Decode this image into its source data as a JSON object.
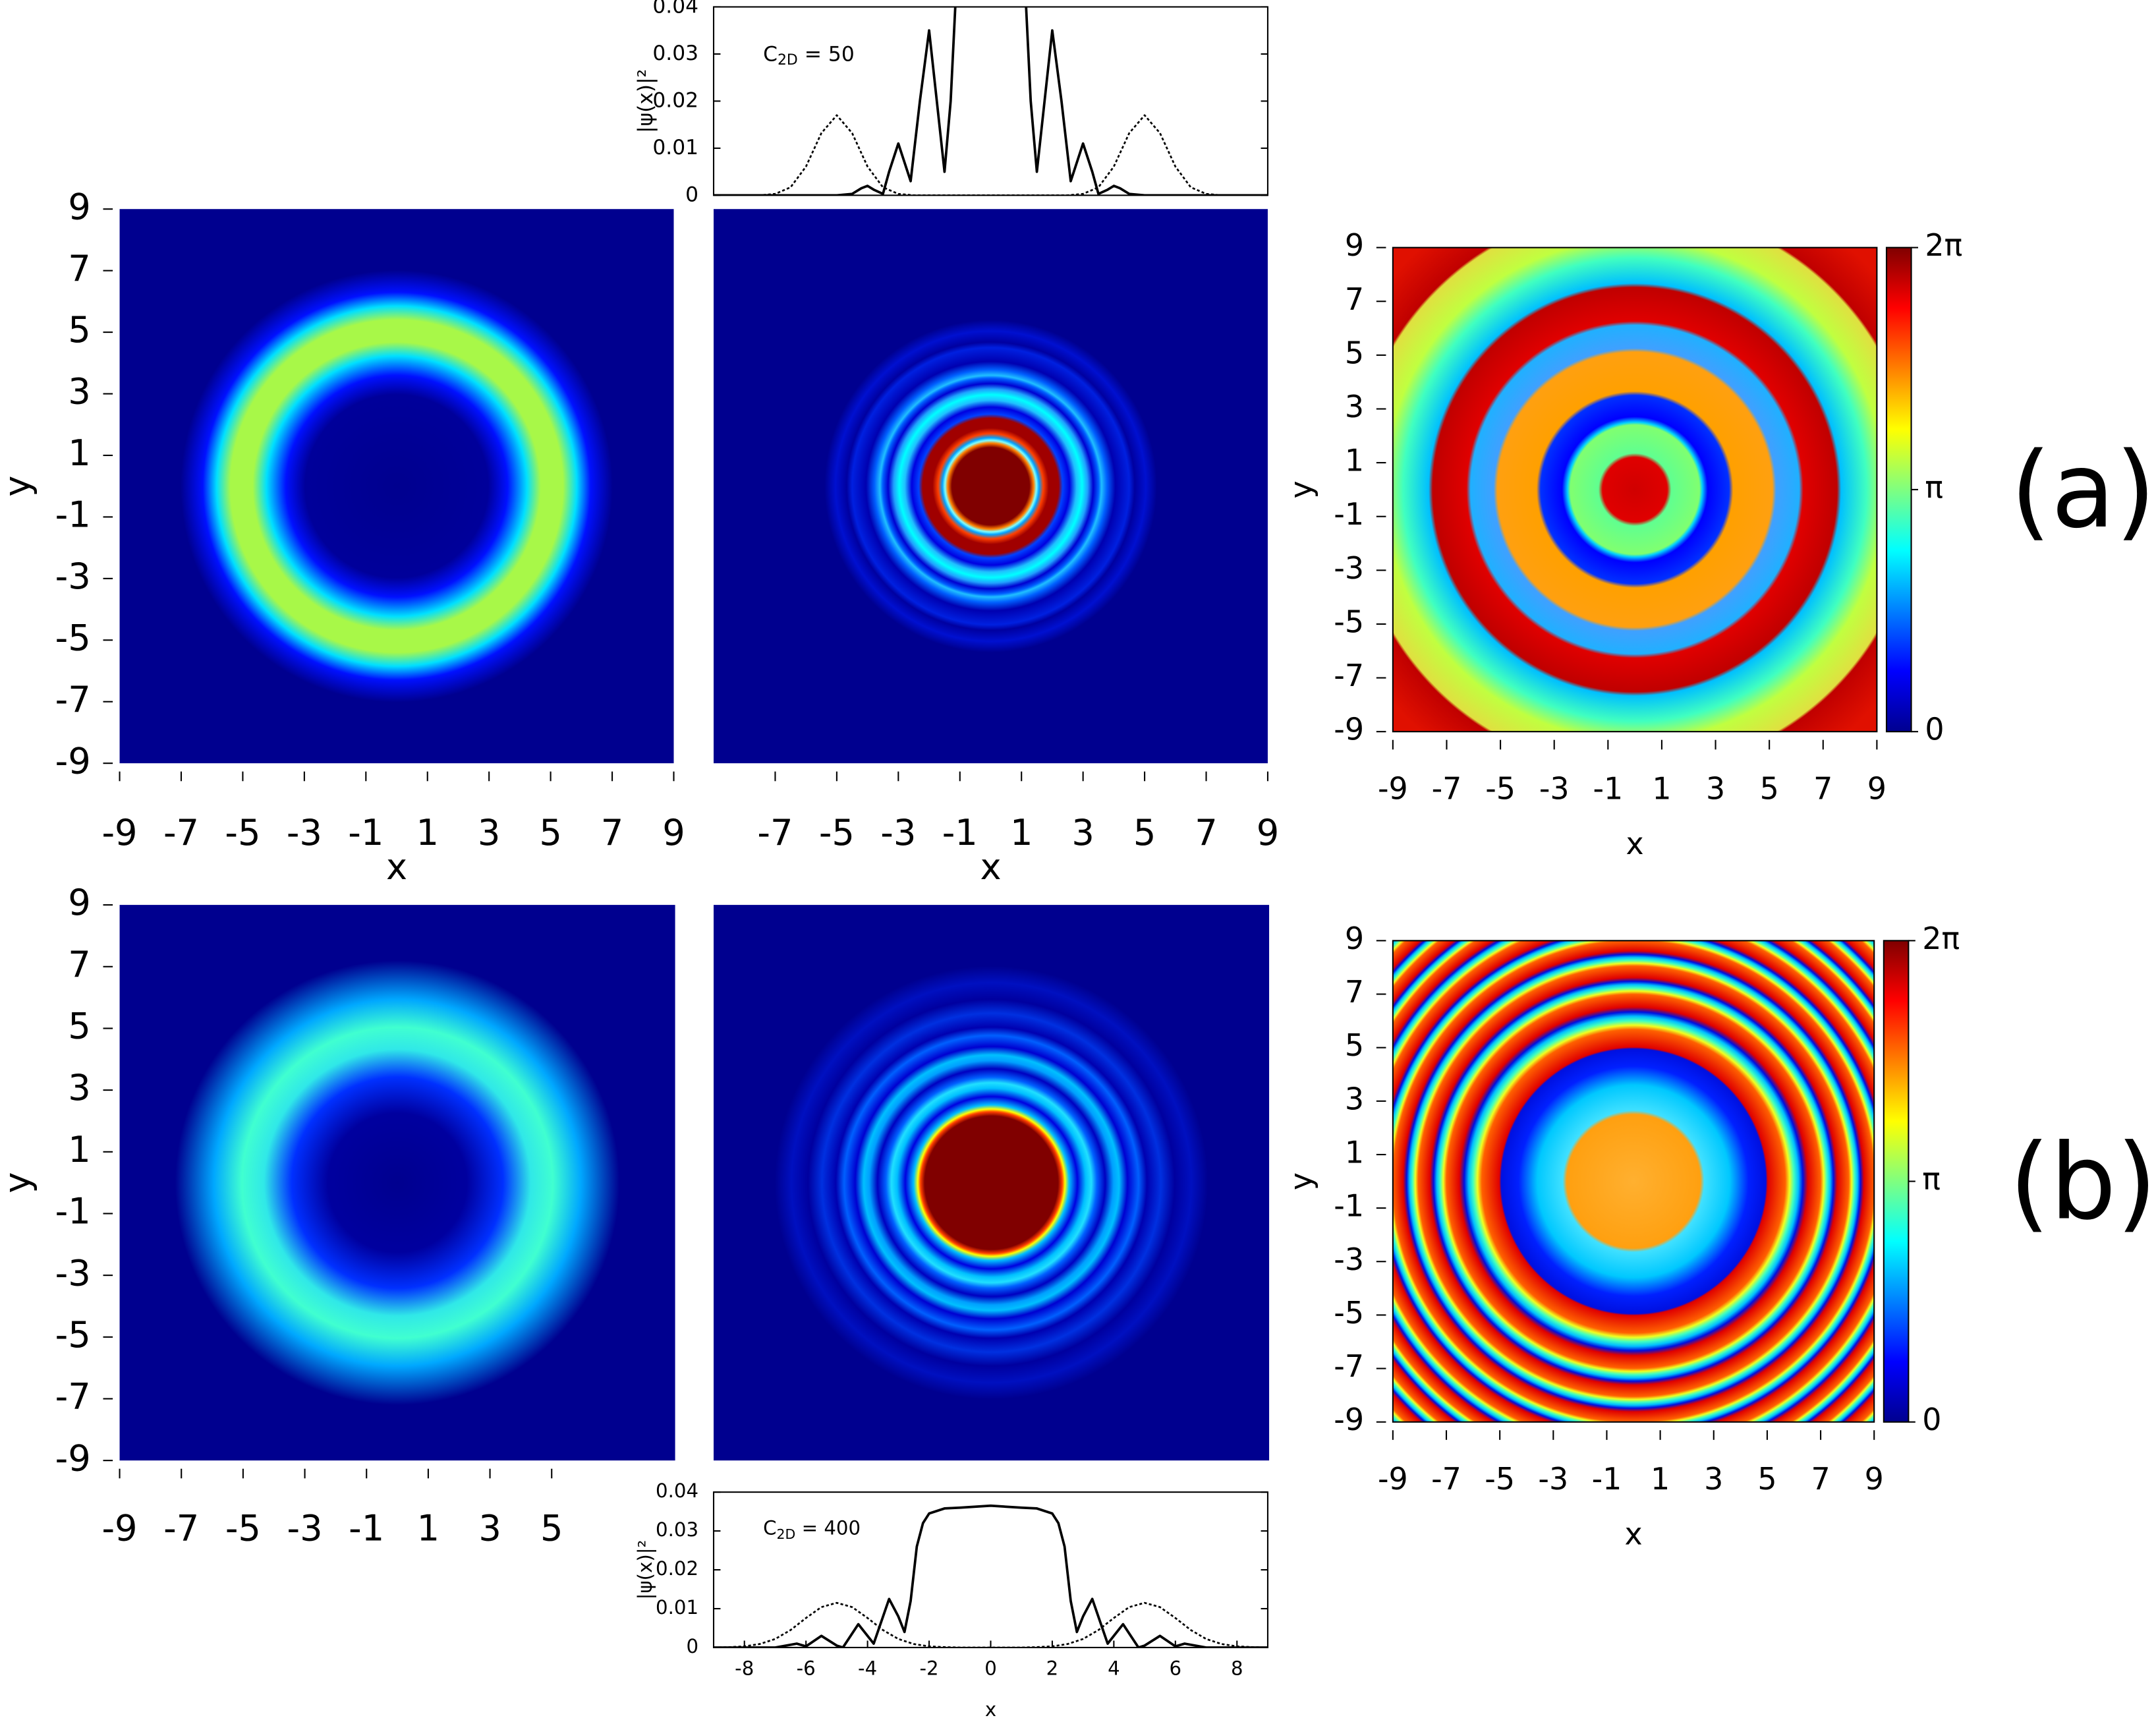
{
  "chart_data": [
    {
      "type": "heatmap",
      "xlabel": "x",
      "ylabel": "y",
      "xlim": [
        -9,
        9
      ],
      "ylim": [
        -9,
        9
      ],
      "xticks": [
        -9,
        -7,
        -5,
        -3,
        -1,
        1,
        3,
        5,
        7,
        9
      ],
      "yticks": [
        -9,
        -7,
        -5,
        -3,
        -1,
        1,
        3,
        5,
        7,
        9
      ]
    },
    {
      "type": "heatmap",
      "xlabel": "x",
      "xlim": [
        -9,
        9
      ],
      "ylim": [
        -9,
        9
      ],
      "xticks": [
        -7,
        -5,
        -3,
        -1,
        1,
        3,
        5,
        7,
        9
      ]
    },
    {
      "type": "line",
      "ylabel": "|ψ(x)|²",
      "annotation": {
        "main": "C",
        "sub": "2D",
        "rest": " = 50"
      },
      "xlim": [
        -9,
        9
      ],
      "ylim": [
        0,
        0.04
      ],
      "yticks": [
        0,
        0.01,
        0.02,
        0.03,
        0.04
      ],
      "series": [
        {
          "color": "#000000",
          "style": "solid",
          "x": [
            -9,
            -5,
            -4.5,
            -4.2,
            -4,
            -3.8,
            -3.5,
            -3.3,
            -3.0,
            -2.8,
            -2.6,
            -2.3,
            -2.0,
            -1.75,
            -1.5,
            -1.3,
            -1.15,
            0,
            1.15,
            1.3,
            1.5,
            1.75,
            2.0,
            2.3,
            2.6,
            2.8,
            3.0,
            3.3,
            3.5,
            3.8,
            4,
            4.2,
            4.5,
            5,
            9
          ],
          "values": [
            0,
            0,
            0.0003,
            0.0015,
            0.002,
            0.0012,
            0.0003,
            0.005,
            0.011,
            0.007,
            0.003,
            0.02,
            0.035,
            0.02,
            0.005,
            0.02,
            0.04,
            null,
            0.04,
            0.02,
            0.005,
            0.02,
            0.035,
            0.02,
            0.003,
            0.007,
            0.011,
            0.005,
            0.0003,
            0.0012,
            0.002,
            0.0015,
            0.0003,
            0,
            0
          ]
        },
        {
          "color": "#000000",
          "style": "dotted",
          "x": [
            -9,
            -8,
            -7.5,
            -7,
            -6.5,
            -6,
            -5.5,
            -5,
            -4.5,
            -4,
            -3.5,
            -3,
            -2.5,
            -2,
            0,
            2,
            2.5,
            3,
            3.5,
            4,
            4.5,
            5,
            5.5,
            6,
            6.5,
            7,
            7.5,
            8,
            9
          ],
          "values": [
            0,
            0,
            0,
            0.0003,
            0.0017,
            0.0061,
            0.0132,
            0.017,
            0.0132,
            0.0061,
            0.0017,
            0.0003,
            0,
            0,
            0,
            0,
            0,
            0.0003,
            0.0017,
            0.0061,
            0.0132,
            0.017,
            0.0132,
            0.0061,
            0.0017,
            0.0003,
            0,
            0,
            0
          ]
        }
      ]
    },
    {
      "type": "heatmap",
      "xlabel": "x",
      "ylabel": "y",
      "xlim": [
        -9,
        9
      ],
      "ylim": [
        -9,
        9
      ],
      "xticks": [
        -9,
        -7,
        -5,
        -3,
        -1,
        1,
        3,
        5,
        7,
        9
      ],
      "yticks": [
        -9,
        -7,
        -5,
        -3,
        -1,
        1,
        3,
        5,
        7,
        9
      ],
      "colorbar": {
        "lim": [
          0,
          6.2832
        ],
        "ticks": [
          {
            "value": 0,
            "label": "0"
          },
          {
            "value": 3.1416,
            "label": "π"
          },
          {
            "value": 6.2832,
            "label": "2π"
          }
        ]
      },
      "panel_label": "(a)"
    },
    {
      "type": "heatmap",
      "ylabel": "y",
      "xlim": [
        -9,
        9
      ],
      "ylim": [
        -9,
        9
      ],
      "xticks": [
        -9,
        -7,
        -5,
        -3,
        -1,
        1,
        3,
        5
      ],
      "yticks": [
        -9,
        -7,
        -5,
        -3,
        -1,
        1,
        3,
        5,
        7,
        9
      ]
    },
    {
      "type": "heatmap",
      "xlim": [
        -9,
        9
      ],
      "ylim": [
        -9,
        9
      ]
    },
    {
      "type": "line",
      "xlabel": "x",
      "ylabel": "|ψ(x)|²",
      "annotation": {
        "main": "C",
        "sub": "2D",
        "rest": " = 400"
      },
      "xlim": [
        -9,
        9
      ],
      "ylim": [
        0,
        0.04
      ],
      "xticks": [
        -8,
        -6,
        -4,
        -2,
        0,
        2,
        4,
        6,
        8
      ],
      "yticks": [
        0,
        0.01,
        0.02,
        0.03,
        0.04
      ],
      "series": [
        {
          "color": "#000000",
          "style": "solid",
          "x": [
            -9,
            -7,
            -6.3,
            -6,
            -5.5,
            -5,
            -4.8,
            -4.3,
            -3.8,
            -3.3,
            -3.0,
            -2.8,
            -2.6,
            -2.4,
            -2.2,
            -2,
            -1.5,
            -1,
            0,
            1,
            1.5,
            2,
            2.2,
            2.4,
            2.6,
            2.8,
            3.0,
            3.3,
            3.8,
            4.3,
            4.8,
            5,
            5.5,
            6,
            6.3,
            7,
            9
          ],
          "values": [
            0,
            0,
            0.001,
            0.0003,
            0.003,
            0.0005,
            0,
            0.006,
            0.001,
            0.0125,
            0.008,
            0.004,
            0.012,
            0.026,
            0.032,
            0.0345,
            0.0358,
            0.036,
            0.0365,
            0.036,
            0.0358,
            0.0345,
            0.032,
            0.026,
            0.012,
            0.004,
            0.008,
            0.0125,
            0.001,
            0.006,
            0,
            0.0005,
            0.003,
            0.0003,
            0.001,
            0,
            0
          ]
        },
        {
          "color": "#000000",
          "style": "dotted",
          "x": [
            -9,
            -8.5,
            -8,
            -7.5,
            -7,
            -6.5,
            -6,
            -5.5,
            -5,
            -4.5,
            -4,
            -3.5,
            -3,
            -2.5,
            -2,
            -1.5,
            -1,
            0,
            1,
            1.5,
            2,
            2.5,
            3,
            3.5,
            4,
            4.5,
            5,
            5.5,
            6,
            6.5,
            7,
            7.5,
            8,
            8.5,
            9
          ],
          "values": [
            0,
            0.0001,
            0.0003,
            0.0009,
            0.0022,
            0.0045,
            0.0076,
            0.0104,
            0.0115,
            0.0104,
            0.0076,
            0.0045,
            0.0022,
            0.0009,
            0.0003,
            0.0001,
            0,
            0,
            0,
            0.0001,
            0.0003,
            0.0009,
            0.0022,
            0.0045,
            0.0076,
            0.0104,
            0.0115,
            0.0104,
            0.0076,
            0.0045,
            0.0022,
            0.0009,
            0.0003,
            0.0001,
            0
          ]
        }
      ]
    },
    {
      "type": "heatmap",
      "xlabel": "x",
      "ylabel": "y",
      "xlim": [
        -9,
        9
      ],
      "ylim": [
        -9,
        9
      ],
      "xticks": [
        -9,
        -7,
        -5,
        -3,
        -1,
        1,
        3,
        5,
        7,
        9
      ],
      "yticks": [
        -9,
        -7,
        -5,
        -3,
        -1,
        1,
        3,
        5,
        7,
        9
      ],
      "colorbar": {
        "lim": [
          0,
          6.2832
        ],
        "ticks": [
          {
            "value": 0,
            "label": "0"
          },
          {
            "value": 3.1416,
            "label": "π"
          },
          {
            "value": 6.2832,
            "label": "2π"
          }
        ]
      },
      "panel_label": "(b)"
    }
  ]
}
